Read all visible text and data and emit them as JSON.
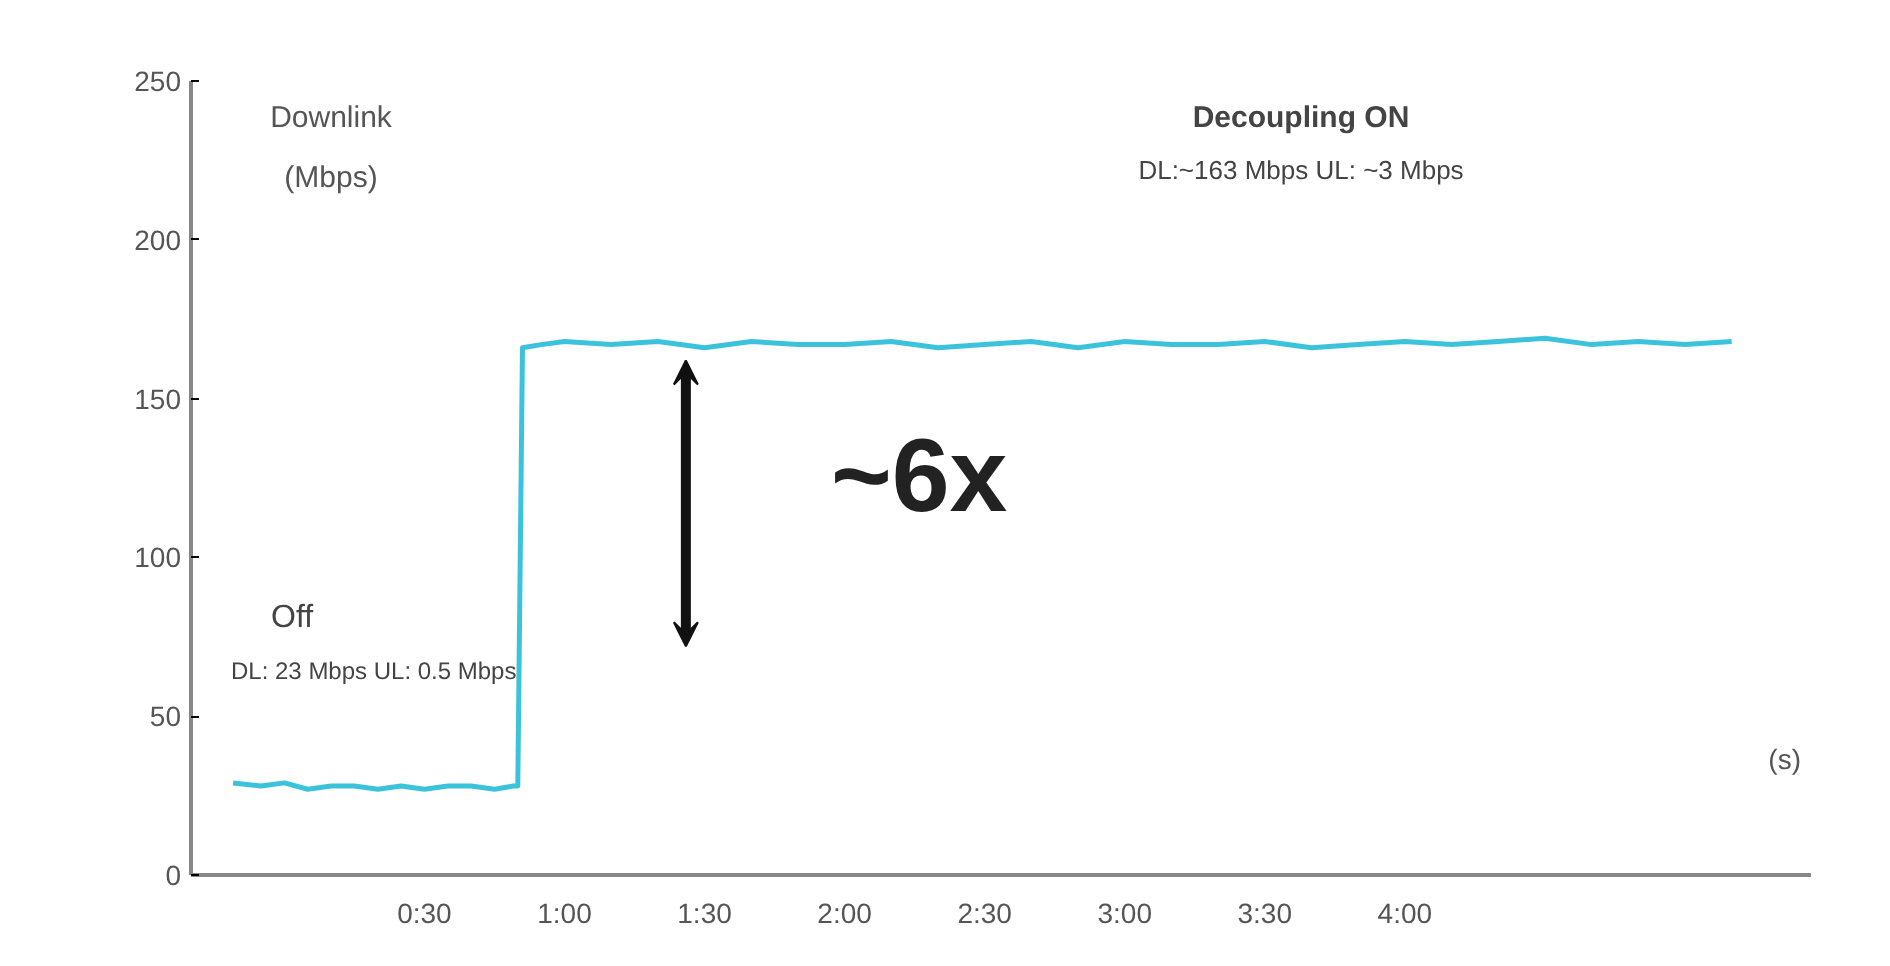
{
  "chart_data": {
    "type": "line",
    "ylabel": "Downlink\n(Mbps)",
    "xlabel": "(s)",
    "x": [
      -11,
      -5,
      0,
      5,
      10,
      15,
      20,
      25,
      30,
      35,
      40,
      45,
      49,
      50,
      51,
      55,
      60,
      70,
      80,
      90,
      100,
      110,
      120,
      130,
      140,
      150,
      160,
      170,
      180,
      190,
      200,
      210,
      220,
      230,
      240,
      250,
      260,
      270,
      280,
      290,
      300,
      310
    ],
    "series": [
      {
        "color": "#3cc3dc",
        "values": [
          29,
          28,
          29,
          27,
          28,
          28,
          27,
          28,
          27,
          28,
          28,
          27,
          28,
          28,
          166,
          167,
          168,
          167,
          168,
          166,
          168,
          167,
          167,
          168,
          166,
          167,
          168,
          166,
          168,
          167,
          167,
          168,
          166,
          167,
          168,
          167,
          168,
          169,
          167,
          168,
          167,
          168
        ]
      }
    ],
    "xlim": [
      -20,
      327
    ],
    "ylim": [
      0,
      250
    ],
    "xticks": [
      {
        "value": 30,
        "label": "0:30"
      },
      {
        "value": 60,
        "label": "1:00"
      },
      {
        "value": 90,
        "label": "1:30"
      },
      {
        "value": 120,
        "label": "2:00"
      },
      {
        "value": 150,
        "label": "2:30"
      },
      {
        "value": 180,
        "label": "3:00"
      },
      {
        "value": 210,
        "label": "3:30"
      },
      {
        "value": 240,
        "label": "4:00"
      }
    ],
    "yticks": [
      0,
      50,
      100,
      150,
      200,
      250
    ],
    "grid": false,
    "annotations": [
      "Decoupling ON",
      "DL:~163 Mbps UL: ~3 Mbps",
      "Off",
      "DL: 23 Mbps UL: 0.5 Mbps",
      "~6x"
    ]
  }
}
